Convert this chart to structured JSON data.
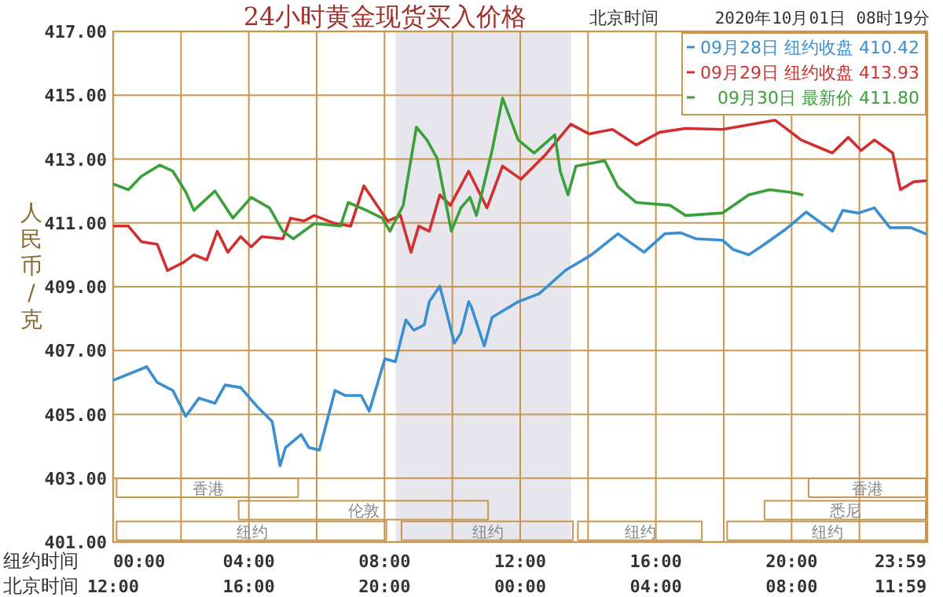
{
  "chart_data": {
    "type": "line",
    "title": "24小时黄金现货买入价格",
    "subtitle": "北京时间",
    "ylabel": "人民币/克",
    "xlabel": "纽约时间",
    "x2label": "北京时间",
    "annotations": [
      "2020年10月01日 08时19分",
      "香港",
      "香港",
      "伦敦",
      "悉尼",
      "纽约",
      "纽约",
      "纽约",
      "纽约"
    ],
    "xlim": [
      0,
      24
    ],
    "ylim": [
      401,
      417
    ],
    "xticks": [
      {
        "value": 0,
        "label": "00:00"
      },
      {
        "value": 2,
        "label": null
      },
      {
        "value": 4,
        "label": "04:00"
      },
      {
        "value": 6,
        "label": null
      },
      {
        "value": 8,
        "label": "08:00"
      },
      {
        "value": 10,
        "label": null
      },
      {
        "value": 12,
        "label": "12:00"
      },
      {
        "value": 14,
        "label": null
      },
      {
        "value": 16,
        "label": "16:00"
      },
      {
        "value": 18,
        "label": null
      },
      {
        "value": 20,
        "label": "20:00"
      },
      {
        "value": 22,
        "label": null
      },
      {
        "value": 23.98,
        "label": "23:59"
      }
    ],
    "x2lim": [
      "2020-09-30T12:00",
      "2020-10-01T12:00"
    ],
    "x2ticks": [
      {
        "value": "2020-09-30T12:00",
        "label": "12:00"
      },
      {
        "value": "2020-09-30T16:00",
        "label": "16:00"
      },
      {
        "value": "2020-09-30T20:00",
        "label": "20:00"
      },
      {
        "value": "2020-10-01T00:00",
        "label": "00:00"
      },
      {
        "value": "2020-10-01T04:00",
        "label": "04:00"
      },
      {
        "value": "2020-10-01T08:00",
        "label": "08:00"
      },
      {
        "value": "2020-10-01T11:59",
        "label": "11:59"
      }
    ],
    "yticks": [
      {
        "value": 401,
        "label": "401.00"
      },
      {
        "value": 403,
        "label": "403.00"
      },
      {
        "value": 405,
        "label": "405.00"
      },
      {
        "value": 407,
        "label": "407.00"
      },
      {
        "value": 409,
        "label": "409.00"
      },
      {
        "value": 411,
        "label": "411.00"
      },
      {
        "value": 413,
        "label": "413.00"
      },
      {
        "value": 415,
        "label": "415.00"
      },
      {
        "value": 417,
        "label": "417.00"
      }
    ],
    "grid": true,
    "legend": "top right",
    "bands": [
      {
        "axis": "x",
        "from": 8.33,
        "to": 13.5,
        "color": "#e6e6ec"
      }
    ],
    "series": [
      {
        "name": "09月28日 纽约收盘 410.42",
        "color": "#3a8fd0",
        "x": [
          0.03,
          0.99,
          1.3,
          1.76,
          2.14,
          2.53,
          3.0,
          3.3,
          3.76,
          4.23,
          4.69,
          4.92,
          5.08,
          5.54,
          5.77,
          6.08,
          6.54,
          6.85,
          7.31,
          7.55,
          8.01,
          8.32,
          8.63,
          8.86,
          9.17,
          9.32,
          9.63,
          10.06,
          10.25,
          10.48,
          10.56,
          10.94,
          11.17,
          11.94,
          12.56,
          13.33,
          14.1,
          14.88,
          15.65,
          16.26,
          16.73,
          17.19,
          17.96,
          18.27,
          18.74,
          19.2,
          19.81,
          20.43,
          21.2,
          21.51,
          21.98,
          22.44,
          22.9,
          23.52,
          23.95
        ],
        "values": [
          406.08,
          406.49,
          406.0,
          405.75,
          404.94,
          405.51,
          405.35,
          405.92,
          405.84,
          405.26,
          404.77,
          403.39,
          403.96,
          404.37,
          403.96,
          403.88,
          405.75,
          405.59,
          405.59,
          405.1,
          406.74,
          406.65,
          407.96,
          407.64,
          407.8,
          408.53,
          409.02,
          407.23,
          407.55,
          408.53,
          408.37,
          407.14,
          408.04,
          408.53,
          408.78,
          409.51,
          410.0,
          410.66,
          410.08,
          410.66,
          410.69,
          410.5,
          410.46,
          410.17,
          410.0,
          410.33,
          410.79,
          411.34,
          410.74,
          411.39,
          411.31,
          411.47,
          410.85,
          410.85,
          410.66
        ]
      },
      {
        "name": "09月29日 纽约收盘 413.93",
        "color": "#d03030",
        "x": [
          0.03,
          0.45,
          0.83,
          1.3,
          1.6,
          2.07,
          2.38,
          2.76,
          3.07,
          3.38,
          3.76,
          4.07,
          4.38,
          5.0,
          5.23,
          5.62,
          5.93,
          6.54,
          7.0,
          7.39,
          7.78,
          8.09,
          8.47,
          8.78,
          9.01,
          9.32,
          9.63,
          9.94,
          10.48,
          11.02,
          11.48,
          12.02,
          12.72,
          13.49,
          14.03,
          14.72,
          15.42,
          16.11,
          16.88,
          17.96,
          19.51,
          20.28,
          21.2,
          21.67,
          22.05,
          22.44,
          22.98,
          23.21,
          23.6,
          23.95
        ],
        "values": [
          410.9,
          410.9,
          410.41,
          410.33,
          409.51,
          409.76,
          410.0,
          409.84,
          410.74,
          410.08,
          410.57,
          410.25,
          410.57,
          410.5,
          411.15,
          411.06,
          411.23,
          410.98,
          410.9,
          412.16,
          411.55,
          411.06,
          411.23,
          410.08,
          410.9,
          410.74,
          411.88,
          411.55,
          412.62,
          411.47,
          412.78,
          412.37,
          413.11,
          414.09,
          413.79,
          413.93,
          413.44,
          413.84,
          413.96,
          413.93,
          414.22,
          413.6,
          413.19,
          413.68,
          413.27,
          413.6,
          413.19,
          412.04,
          412.29,
          412.32
        ]
      },
      {
        "name": "09月30日 最新价 411.80",
        "color": "#3aa03a",
        "x": [
          0.03,
          0.45,
          0.83,
          1.37,
          1.76,
          2.14,
          2.38,
          3.0,
          3.53,
          4.07,
          4.61,
          5.0,
          5.31,
          5.93,
          6.7,
          6.93,
          7.47,
          7.93,
          8.16,
          8.55,
          8.94,
          9.25,
          9.55,
          9.97,
          10.25,
          10.52,
          10.71,
          11.17,
          11.48,
          11.94,
          12.41,
          13.02,
          13.18,
          13.41,
          13.64,
          14.49,
          14.88,
          15.42,
          16.42,
          16.88,
          17.96,
          18.74,
          19.35,
          19.97,
          20.31
        ],
        "values": [
          412.21,
          412.04,
          412.46,
          412.81,
          412.62,
          411.97,
          411.39,
          412.0,
          411.15,
          411.8,
          411.47,
          410.74,
          410.5,
          410.98,
          410.9,
          411.64,
          411.39,
          411.15,
          410.74,
          411.55,
          414.0,
          413.6,
          413.02,
          410.74,
          411.47,
          411.8,
          411.23,
          413.27,
          414.91,
          413.6,
          413.19,
          413.76,
          412.62,
          411.88,
          412.78,
          412.95,
          412.13,
          411.64,
          411.55,
          411.23,
          411.31,
          411.88,
          412.04,
          411.96,
          411.88
        ]
      }
    ]
  }
}
